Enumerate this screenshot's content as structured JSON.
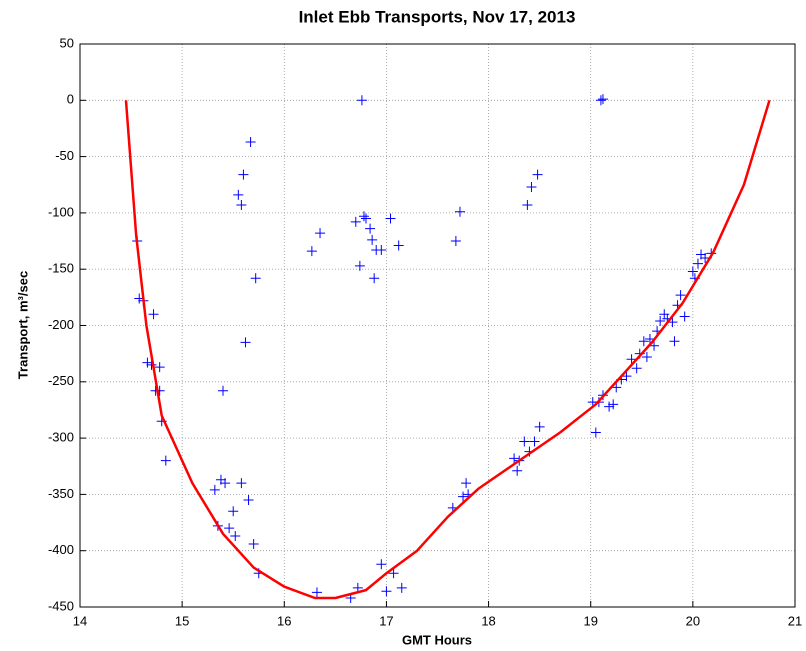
{
  "chart_data": {
    "type": "scatter",
    "title": "Inlet Ebb Transports, Nov 17, 2013",
    "x_label": "GMT Hours",
    "y_label": "Transport, m³/sec",
    "xlim": [
      14,
      21
    ],
    "ylim": [
      -450,
      50
    ],
    "xticks": [
      14,
      15,
      16,
      17,
      18,
      19,
      20,
      21
    ],
    "yticks": [
      -450,
      -400,
      -350,
      -300,
      -250,
      -200,
      -150,
      -100,
      -50,
      0,
      50
    ],
    "grid": true,
    "series": [
      {
        "type": "scatter",
        "color": "#0000ff",
        "x": [
          14.56,
          14.58,
          14.62,
          14.66,
          14.7,
          14.72,
          14.74,
          14.78,
          14.78,
          14.8,
          14.84,
          15.32,
          15.35,
          15.38,
          15.42,
          15.4,
          15.46,
          15.5,
          15.52,
          15.55,
          15.58,
          15.6,
          15.62,
          15.58,
          15.65,
          15.67,
          15.7,
          15.72,
          15.75,
          16.27,
          16.35,
          16.32,
          16.65,
          16.7,
          16.72,
          16.74,
          16.76,
          16.78,
          16.8,
          16.84,
          16.86,
          16.88,
          16.9,
          16.95,
          16.95,
          17.0,
          17.04,
          17.07,
          17.12,
          17.15,
          17.65,
          17.68,
          17.72,
          17.75,
          17.78,
          17.8,
          18.25,
          18.28,
          18.3,
          18.35,
          18.38,
          18.4,
          18.42,
          18.45,
          18.48,
          18.5,
          19.02,
          19.05,
          19.08,
          19.1,
          19.12,
          19.12,
          19.18,
          19.22,
          19.25,
          19.3,
          19.35,
          19.4,
          19.45,
          19.48,
          19.52,
          19.55,
          19.58,
          19.62,
          19.65,
          19.68,
          19.72,
          19.75,
          19.8,
          19.82,
          19.85,
          19.88,
          19.92,
          20.0,
          20.02,
          20.05,
          20.08,
          20.12,
          20.18
        ],
        "y": [
          -125,
          -176,
          -178,
          -233,
          -235,
          -190,
          -258,
          -237,
          -258,
          -285,
          -320,
          -346,
          -378,
          -337,
          -340,
          -258,
          -380,
          -365,
          -387,
          -84,
          -93,
          -66,
          -215,
          -340,
          -355,
          -37,
          -394,
          -158,
          -420,
          -134,
          -118,
          -437,
          -442,
          -108,
          -433,
          -147,
          0,
          -103,
          -105,
          -114,
          -124,
          -158,
          -133,
          -133,
          -412,
          -436,
          -105,
          -420,
          -129,
          -433,
          -362,
          -125,
          -99,
          -352,
          -340,
          -350,
          -318,
          -329,
          -320,
          -303,
          -93,
          -312,
          -77,
          -303,
          -66,
          -290,
          -268,
          -295,
          -268,
          0,
          1,
          -262,
          -272,
          -270,
          -255,
          -248,
          -245,
          -230,
          -238,
          -225,
          -214,
          -228,
          -212,
          -218,
          -205,
          -196,
          -190,
          -194,
          -197,
          -214,
          -182,
          -173,
          -192,
          -152,
          -158,
          -145,
          -137,
          -140,
          -136
        ]
      },
      {
        "type": "line",
        "color": "#ff0000",
        "x": [
          14.45,
          14.55,
          14.65,
          14.8,
          15.1,
          15.4,
          15.7,
          16.0,
          16.3,
          16.5,
          16.8,
          17.0,
          17.3,
          17.6,
          17.9,
          18.3,
          18.7,
          19.05,
          19.3,
          19.6,
          19.9,
          20.2,
          20.5,
          20.75
        ],
        "y": [
          0,
          -120,
          -200,
          -280,
          -340,
          -385,
          -415,
          -432,
          -442,
          -442,
          -435,
          -420,
          -400,
          -370,
          -345,
          -320,
          -295,
          -270,
          -245,
          -215,
          -180,
          -135,
          -75,
          0
        ]
      }
    ]
  }
}
